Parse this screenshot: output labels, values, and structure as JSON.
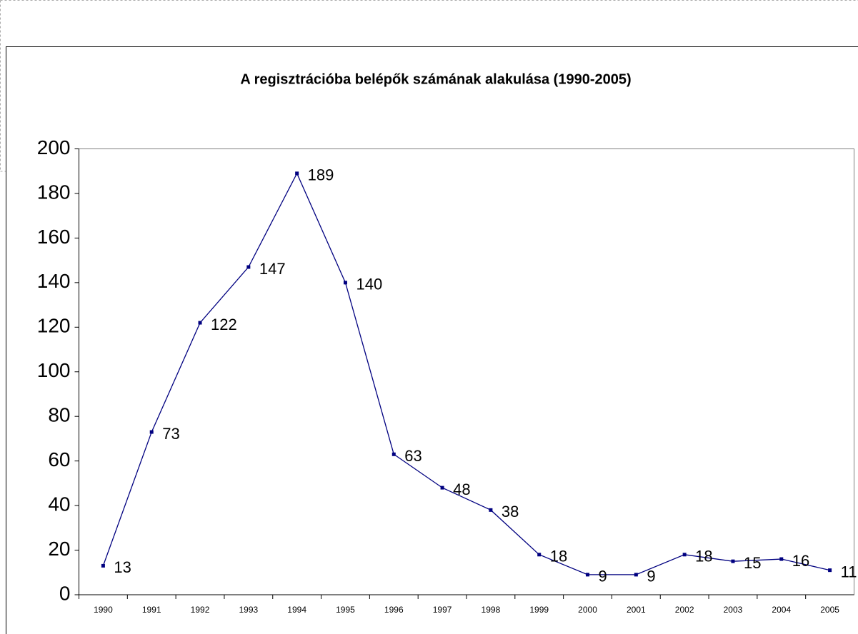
{
  "chart_data": {
    "type": "line",
    "title": "A regisztrációba belépők számának alakulása (1990-2005)",
    "categories": [
      "1990",
      "1991",
      "1992",
      "1993",
      "1994",
      "1995",
      "1996",
      "1997",
      "1998",
      "1999",
      "2000",
      "2001",
      "2002",
      "2003",
      "2004",
      "2005"
    ],
    "series": [
      {
        "name": "Belépők",
        "color": "#000080",
        "values": [
          13,
          73,
          122,
          147,
          189,
          140,
          63,
          48,
          38,
          18,
          9,
          9,
          18,
          15,
          16,
          11
        ]
      }
    ],
    "ylim": [
      0,
      200
    ],
    "yticks": [
      0,
      20,
      40,
      60,
      80,
      100,
      120,
      140,
      160,
      180,
      200
    ],
    "grid": false,
    "legend": false
  }
}
